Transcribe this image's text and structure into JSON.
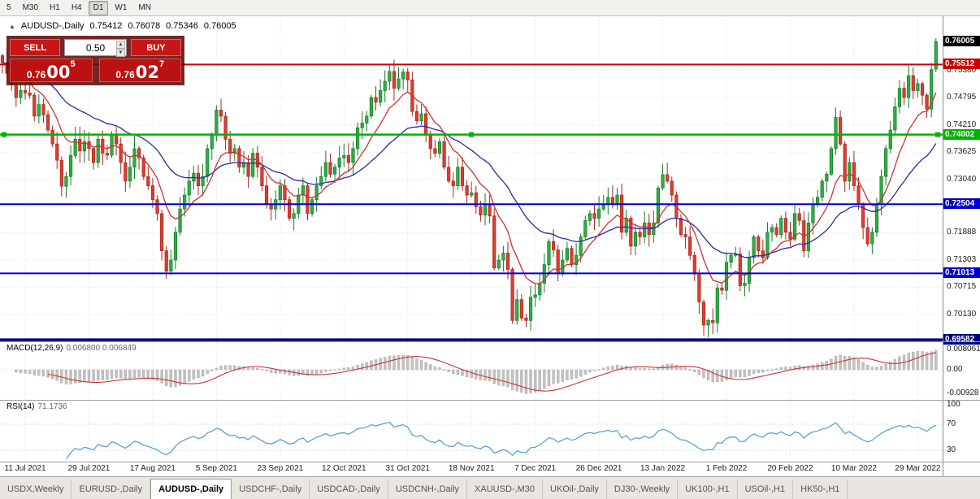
{
  "toolbar": {
    "buttons": [
      {
        "label": "5",
        "active": false
      },
      {
        "label": "M30",
        "active": false
      },
      {
        "label": "H1",
        "active": false
      },
      {
        "label": "H4",
        "active": false
      },
      {
        "label": "D1",
        "active": true
      },
      {
        "label": "W1",
        "active": false
      },
      {
        "label": "MN",
        "active": false
      }
    ]
  },
  "symbol_bar": {
    "arrow": "▲",
    "title": "AUDUSD-,Daily",
    "open": "0.75412",
    "high": "0.76078",
    "low": "0.75346",
    "close": "0.76005"
  },
  "trade_panel": {
    "sell_label": "SELL",
    "buy_label": "BUY",
    "volume": "0.50",
    "bid_prefix": "0.76",
    "bid_big": "00",
    "bid_sup": "5",
    "ask_prefix": "0.76",
    "ask_big": "02",
    "ask_sup": "7"
  },
  "indicators": {
    "macd_name": "MACD(12,26,9)",
    "macd_values": "0.006800 0.006849",
    "rsi_name": "RSI(14)",
    "rsi_value": "71.1736"
  },
  "price_axis": {
    "labels": [
      "0.75380",
      "0.74795",
      "0.74210",
      "0.73625",
      "0.73040",
      "0.71888",
      "0.71303",
      "0.70715",
      "0.70130"
    ],
    "tags": [
      {
        "text": "0.76005",
        "bg": "#000000"
      },
      {
        "text": "0.75512",
        "bg": "#cc0000"
      },
      {
        "text": "0.74002",
        "bg": "#00b300"
      },
      {
        "text": "0.72504",
        "bg": "#0000cc"
      },
      {
        "text": "0.71013",
        "bg": "#0000cc"
      },
      {
        "text": "0.69582",
        "bg": "#000080"
      }
    ]
  },
  "macd_axis": [
    {
      "text": "0.008061",
      "v": 0.008061
    },
    {
      "text": "0.00",
      "v": 0
    },
    {
      "text": "-0.00928",
      "v": -0.00928
    }
  ],
  "rsi_axis": [
    {
      "text": "100",
      "v": 100
    },
    {
      "text": "70",
      "v": 70
    },
    {
      "text": "30",
      "v": 30
    }
  ],
  "dates": [
    {
      "label": "11 Jul 2021",
      "idx": 5
    },
    {
      "label": "29 Jul 2021",
      "idx": 19
    },
    {
      "label": "17 Aug 2021",
      "idx": 33
    },
    {
      "label": "5 Sep 2021",
      "idx": 47
    },
    {
      "label": "23 Sep 2021",
      "idx": 61
    },
    {
      "label": "12 Oct 2021",
      "idx": 75
    },
    {
      "label": "31 Oct 2021",
      "idx": 89
    },
    {
      "label": "18 Nov 2021",
      "idx": 103
    },
    {
      "label": "7 Dec 2021",
      "idx": 117
    },
    {
      "label": "26 Dec 2021",
      "idx": 131
    },
    {
      "label": "13 Jan 2022",
      "idx": 145
    },
    {
      "label": "1 Feb 2022",
      "idx": 159
    },
    {
      "label": "20 Feb 2022",
      "idx": 173
    },
    {
      "label": "10 Mar 2022",
      "idx": 187
    },
    {
      "label": "29 Mar 2022",
      "idx": 201
    }
  ],
  "tabs": [
    {
      "label": "USDX,Weekly",
      "active": false
    },
    {
      "label": "EURUSD-,Daily",
      "active": false
    },
    {
      "label": "AUDUSD-,Daily",
      "active": true
    },
    {
      "label": "USDCHF-,Daily",
      "active": false
    },
    {
      "label": "USDCAD-,Daily",
      "active": false
    },
    {
      "label": "USDCNH-,Daily",
      "active": false
    },
    {
      "label": "XAUUSD-,M30",
      "active": false
    },
    {
      "label": "UKOil-,Daily",
      "active": false
    },
    {
      "label": "DJ30-,Weekly",
      "active": false
    },
    {
      "label": "UK100-,H1",
      "active": false
    },
    {
      "label": "USOil-,H1",
      "active": false
    },
    {
      "label": "HK50-,H1",
      "active": false
    }
  ],
  "chart_data": {
    "type": "candlestick",
    "symbol": "AUDUSD-",
    "timeframe": "Daily",
    "price_range": [
      0.6955,
      0.7655
    ],
    "grid_values": [
      0.7538,
      0.74795,
      0.7421,
      0.73625,
      0.7304,
      0.72455,
      0.71888,
      0.71303,
      0.70715,
      0.7013
    ],
    "levels": [
      {
        "value": 0.75512,
        "color": "#cc0000",
        "width": 2,
        "handles": false
      },
      {
        "value": 0.74002,
        "color": "#00b300",
        "width": 2.5,
        "handles": true
      },
      {
        "value": 0.72504,
        "color": "#0000cc",
        "width": 2,
        "handles": false
      },
      {
        "value": 0.71013,
        "color": "#0000cc",
        "width": 2,
        "handles": false
      },
      {
        "value": 0.69582,
        "color": "#000080",
        "width": 3.5,
        "handles": false
      }
    ],
    "up_color": "#2eae44",
    "up_border": "#157a28",
    "down_color": "#e23b2e",
    "down_border": "#a3271d",
    "ma_fast": {
      "period": 10,
      "color": "#d32f2f"
    },
    "ma_slow": {
      "period": 30,
      "color": "#2a2aa8"
    },
    "macd": {
      "fast": 12,
      "slow": 26,
      "signal_period": 9,
      "hist_color": "#c2c2c2",
      "signal_color": "#cc3333",
      "current": "0.006800",
      "signal_current": "0.006849"
    },
    "rsi": {
      "period": 14,
      "color": "#4f9bd6",
      "levels": [
        30,
        70
      ],
      "current": "71.1736"
    },
    "first_open": 0.757,
    "last_ohlc": [
      0.75412,
      0.76078,
      0.75346,
      0.76005
    ],
    "closes": [
      0.7555,
      0.7532,
      0.7508,
      0.748,
      0.7495,
      0.749,
      0.7485,
      0.744,
      0.7465,
      0.7443,
      0.741,
      0.738,
      0.7345,
      0.7289,
      0.731,
      0.7355,
      0.739,
      0.7365,
      0.7385,
      0.737,
      0.734,
      0.739,
      0.736,
      0.7356,
      0.74,
      0.738,
      0.734,
      0.73,
      0.733,
      0.737,
      0.735,
      0.731,
      0.729,
      0.726,
      0.723,
      0.715,
      0.7106,
      0.713,
      0.719,
      0.724,
      0.727,
      0.73,
      0.7317,
      0.729,
      0.731,
      0.737,
      0.74,
      0.7453,
      0.744,
      0.739,
      0.736,
      0.737,
      0.733,
      0.734,
      0.731,
      0.736,
      0.733,
      0.729,
      0.725,
      0.724,
      0.726,
      0.729,
      0.726,
      0.722,
      0.723,
      0.727,
      0.729,
      0.723,
      0.726,
      0.729,
      0.731,
      0.734,
      0.7315,
      0.733,
      0.735,
      0.7355,
      0.734,
      0.737,
      0.7415,
      0.7425,
      0.744,
      0.748,
      0.747,
      0.7495,
      0.7515,
      0.7536,
      0.75,
      0.752,
      0.7535,
      0.7518,
      0.745,
      0.743,
      0.7445,
      0.74,
      0.737,
      0.736,
      0.7385,
      0.733,
      0.73,
      0.729,
      0.733,
      0.729,
      0.727,
      0.7275,
      0.7245,
      0.7227,
      0.725,
      0.7225,
      0.7113,
      0.713,
      0.7145,
      0.711,
      0.7,
      0.7045,
      0.7005,
      0.7,
      0.705,
      0.7055,
      0.708,
      0.712,
      0.717,
      0.7152,
      0.71,
      0.713,
      0.7155,
      0.712,
      0.714,
      0.718,
      0.7215,
      0.723,
      0.722,
      0.724,
      0.725,
      0.7265,
      0.7252,
      0.727,
      0.719,
      0.722,
      0.716,
      0.719,
      0.718,
      0.721,
      0.7185,
      0.721,
      0.7285,
      0.7314,
      0.73,
      0.727,
      0.722,
      0.7185,
      0.718,
      0.714,
      0.71,
      0.704,
      0.699,
      0.7,
      0.6995,
      0.707,
      0.7065,
      0.7125,
      0.714,
      0.7143,
      0.7075,
      0.708,
      0.7135,
      0.718,
      0.715,
      0.7135,
      0.719,
      0.72,
      0.7185,
      0.722,
      0.719,
      0.7175,
      0.723,
      0.7215,
      0.715,
      0.721,
      0.725,
      0.7265,
      0.73,
      0.7315,
      0.737,
      0.7437,
      0.738,
      0.73,
      0.734,
      0.729,
      0.725,
      0.72,
      0.7165,
      0.719,
      0.725,
      0.731,
      0.737,
      0.741,
      0.746,
      0.75,
      0.748,
      0.7527,
      0.7495,
      0.751,
      0.7485,
      0.7455,
      0.754,
      0.76005
    ]
  }
}
